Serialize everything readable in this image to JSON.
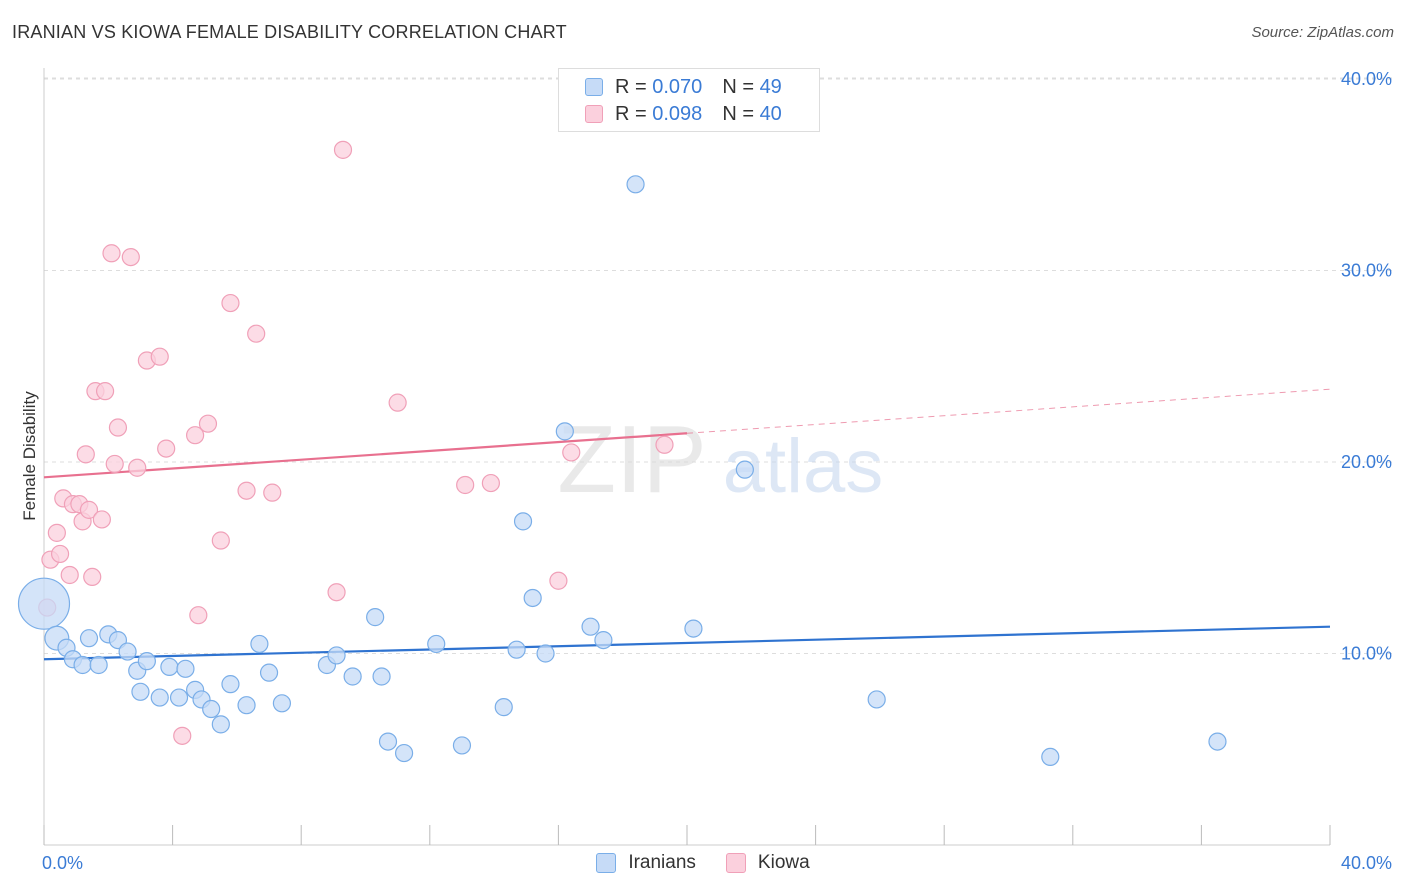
{
  "title": "IRANIAN VS KIOWA FEMALE DISABILITY CORRELATION CHART",
  "source": "Source: ZipAtlas.com",
  "watermark": {
    "zip": "ZIP",
    "atlas": "atlas"
  },
  "legend": {
    "rows": [
      {
        "r_label": "R = ",
        "r_value": "0.070",
        "n_label": "N = ",
        "n_value": "49",
        "color": "#7aaee8"
      },
      {
        "r_label": "R = ",
        "r_value": "0.098",
        "n_label": "N = ",
        "n_value": "40",
        "color": "#f0a0b8"
      }
    ]
  },
  "bottom_legend": {
    "iranians": "Iranians",
    "kiowa": "Kiowa"
  },
  "colors": {
    "blue_fill": "#c6dbf7",
    "blue_stroke": "#7aaee8",
    "blue_line": "#2f73d0",
    "pink_fill": "#fbd0dd",
    "pink_stroke": "#f0a0b8",
    "pink_line": "#e8708f",
    "tick_label": "#3a7bd5"
  },
  "chart_data": {
    "type": "scatter",
    "title": "IRANIAN VS KIOWA FEMALE DISABILITY CORRELATION CHART",
    "xlabel": "",
    "ylabel": "Female Disability",
    "xlim": [
      0,
      40
    ],
    "ylim": [
      0,
      41
    ],
    "x_tick_labels": [
      "0.0%",
      "40.0%"
    ],
    "y_ticks": [
      10,
      20,
      30,
      40
    ],
    "y_tick_labels": [
      "10.0%",
      "20.0%",
      "30.0%",
      "40.0%"
    ],
    "grid": true,
    "series": [
      {
        "name": "Iranians",
        "r": 0.07,
        "n": 49,
        "trend": {
          "x": [
            0,
            40
          ],
          "y": [
            9.7,
            11.4
          ]
        },
        "points": [
          [
            0.0,
            12.6,
            3.0
          ],
          [
            0.4,
            10.8,
            1.4
          ],
          [
            0.7,
            10.3,
            1
          ],
          [
            0.9,
            9.7,
            1
          ],
          [
            1.2,
            9.4,
            1
          ],
          [
            1.4,
            10.8,
            1
          ],
          [
            1.7,
            9.4,
            1
          ],
          [
            2.0,
            11.0,
            1
          ],
          [
            2.3,
            10.7,
            1
          ],
          [
            2.6,
            10.1,
            1
          ],
          [
            2.9,
            9.1,
            1
          ],
          [
            3.0,
            8.0,
            1
          ],
          [
            3.2,
            9.6,
            1
          ],
          [
            3.6,
            7.7,
            1
          ],
          [
            3.9,
            9.3,
            1
          ],
          [
            4.2,
            7.7,
            1
          ],
          [
            4.4,
            9.2,
            1
          ],
          [
            4.7,
            8.1,
            1
          ],
          [
            4.9,
            7.6,
            1
          ],
          [
            5.2,
            7.1,
            1
          ],
          [
            5.5,
            6.3,
            1
          ],
          [
            5.8,
            8.4,
            1
          ],
          [
            6.3,
            7.3,
            1
          ],
          [
            6.7,
            10.5,
            1
          ],
          [
            7.0,
            9.0,
            1
          ],
          [
            7.4,
            7.4,
            1
          ],
          [
            8.8,
            9.4,
            1
          ],
          [
            9.1,
            9.9,
            1
          ],
          [
            9.6,
            8.8,
            1
          ],
          [
            10.3,
            11.9,
            1
          ],
          [
            10.5,
            8.8,
            1
          ],
          [
            10.7,
            5.4,
            1
          ],
          [
            11.2,
            4.8,
            1
          ],
          [
            12.2,
            10.5,
            1
          ],
          [
            13.0,
            5.2,
            1
          ],
          [
            14.3,
            7.2,
            1
          ],
          [
            14.7,
            10.2,
            1
          ],
          [
            14.9,
            16.9,
            1
          ],
          [
            15.2,
            12.9,
            1
          ],
          [
            15.6,
            10.0,
            1
          ],
          [
            16.2,
            21.6,
            1
          ],
          [
            17.0,
            11.4,
            1
          ],
          [
            17.4,
            10.7,
            1
          ],
          [
            18.4,
            34.5,
            1
          ],
          [
            20.2,
            11.3,
            1
          ],
          [
            21.8,
            19.6,
            1
          ],
          [
            25.9,
            7.6,
            1
          ],
          [
            31.3,
            4.6,
            1
          ],
          [
            36.5,
            5.4,
            1
          ]
        ]
      },
      {
        "name": "Kiowa",
        "r": 0.098,
        "n": 40,
        "trend": {
          "x": [
            0,
            20
          ],
          "y": [
            19.2,
            21.5
          ]
        },
        "trend_dashed": {
          "x": [
            20,
            40
          ],
          "y": [
            21.5,
            23.8
          ]
        },
        "points": [
          [
            0.1,
            12.4,
            1
          ],
          [
            0.2,
            14.9,
            1
          ],
          [
            0.4,
            16.3,
            1
          ],
          [
            0.5,
            15.2,
            1
          ],
          [
            0.6,
            18.1,
            1
          ],
          [
            0.8,
            14.1,
            1
          ],
          [
            0.9,
            17.8,
            1
          ],
          [
            1.1,
            17.8,
            1
          ],
          [
            1.2,
            16.9,
            1
          ],
          [
            1.3,
            20.4,
            1
          ],
          [
            1.4,
            17.5,
            1
          ],
          [
            1.5,
            14.0,
            1
          ],
          [
            1.6,
            23.7,
            1
          ],
          [
            1.8,
            17.0,
            1
          ],
          [
            1.9,
            23.7,
            1
          ],
          [
            2.1,
            30.9,
            1
          ],
          [
            2.2,
            19.9,
            1
          ],
          [
            2.3,
            21.8,
            1
          ],
          [
            2.7,
            30.7,
            1
          ],
          [
            2.9,
            19.7,
            1
          ],
          [
            3.2,
            25.3,
            1
          ],
          [
            3.6,
            25.5,
            1
          ],
          [
            3.8,
            20.7,
            1
          ],
          [
            4.3,
            5.7,
            1
          ],
          [
            4.7,
            21.4,
            1
          ],
          [
            4.8,
            12.0,
            1
          ],
          [
            5.1,
            22.0,
            1
          ],
          [
            5.5,
            15.9,
            1
          ],
          [
            5.8,
            28.3,
            1
          ],
          [
            6.3,
            18.5,
            1
          ],
          [
            6.6,
            26.7,
            1
          ],
          [
            7.1,
            18.4,
            1
          ],
          [
            9.1,
            13.2,
            1
          ],
          [
            9.3,
            36.3,
            1
          ],
          [
            11.0,
            23.1,
            1
          ],
          [
            13.1,
            18.8,
            1
          ],
          [
            13.9,
            18.9,
            1
          ],
          [
            16.0,
            13.8,
            1
          ],
          [
            16.4,
            20.5,
            1
          ],
          [
            19.3,
            20.9,
            1
          ]
        ]
      }
    ]
  }
}
